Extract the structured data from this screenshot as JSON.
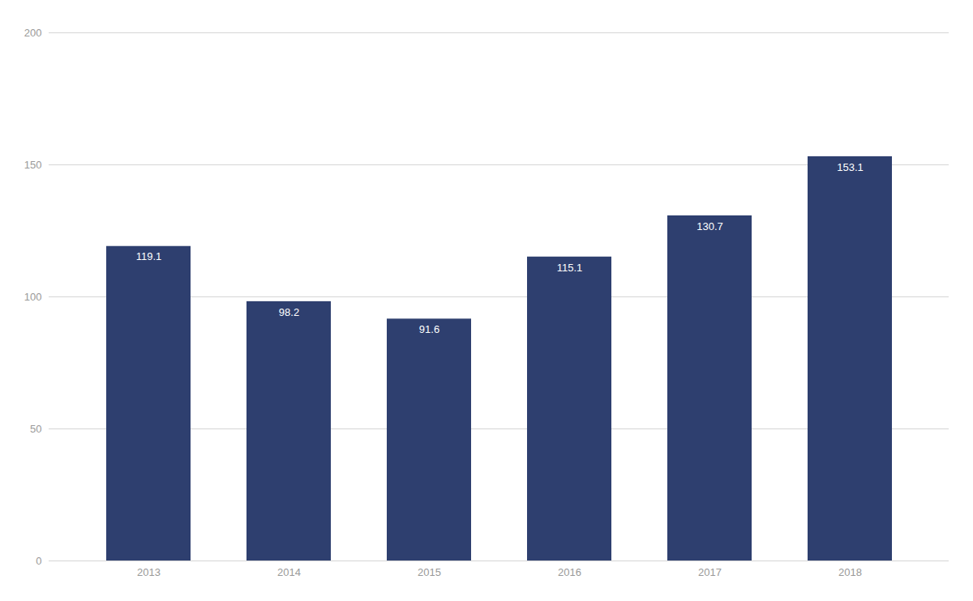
{
  "chart_data": {
    "type": "bar",
    "categories": [
      "2013",
      "2014",
      "2015",
      "2016",
      "2017",
      "2018"
    ],
    "values": [
      119.1,
      98.2,
      91.6,
      115.1,
      130.7,
      153.1
    ],
    "color": "#2E3F6F",
    "ylim": [
      0,
      200
    ],
    "yticks": [
      0,
      50,
      100,
      150,
      200
    ],
    "grid": true,
    "data_labels": true
  }
}
